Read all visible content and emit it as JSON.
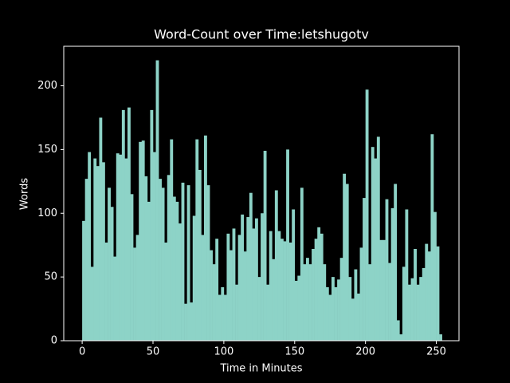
{
  "chart_data": {
    "type": "bar",
    "title": "Word-Count over Time:letshugotv",
    "xlabel": "Time in Minutes",
    "ylabel": "Words",
    "color": "#8dd3c7",
    "x": [
      0,
      2,
      4,
      6,
      8,
      10,
      12,
      14,
      16,
      18,
      20,
      22,
      24,
      26,
      28,
      30,
      32,
      34,
      36,
      38,
      40,
      42,
      44,
      46,
      48,
      50,
      52,
      54,
      56,
      58,
      60,
      62,
      64,
      66,
      68,
      70,
      72,
      74,
      76,
      78,
      80,
      82,
      84,
      86,
      88,
      90,
      92,
      94,
      96,
      98,
      100,
      102,
      104,
      106,
      108,
      110,
      112,
      114,
      116,
      118,
      120,
      122,
      124,
      126,
      128,
      130,
      132,
      134,
      136,
      138,
      140,
      142,
      144,
      146,
      148,
      150,
      152,
      154,
      156,
      158,
      160,
      162,
      164,
      166,
      168,
      170,
      172,
      174,
      176,
      178,
      180,
      182,
      184,
      186,
      188,
      190,
      192,
      194,
      196,
      198,
      200,
      202,
      204,
      206,
      208,
      210,
      212,
      214,
      216,
      218,
      220,
      222,
      224,
      226,
      228,
      230,
      232,
      234,
      236,
      238,
      240,
      242,
      244,
      246,
      248,
      250,
      252
    ],
    "values": [
      94,
      127,
      148,
      58,
      143,
      137,
      175,
      140,
      77,
      120,
      105,
      66,
      147,
      146,
      181,
      143,
      183,
      115,
      73,
      83,
      156,
      157,
      129,
      109,
      181,
      148,
      220,
      127,
      120,
      77,
      130,
      158,
      113,
      109,
      92,
      124,
      29,
      122,
      30,
      98,
      158,
      134,
      83,
      161,
      122,
      71,
      60,
      80,
      36,
      42,
      36,
      84,
      71,
      88,
      44,
      83,
      99,
      70,
      97,
      116,
      88,
      96,
      50,
      100,
      149,
      44,
      86,
      64,
      118,
      86,
      80,
      78,
      150,
      77,
      103,
      47,
      51,
      120,
      60,
      65,
      60,
      72,
      80,
      89,
      84,
      60,
      42,
      36,
      50,
      42,
      48,
      65,
      131,
      123,
      50,
      33,
      56,
      37,
      73,
      112,
      197,
      60,
      152,
      143,
      160,
      79,
      79,
      111,
      61,
      104,
      123,
      16,
      5,
      58,
      103,
      44,
      49,
      72,
      44,
      50,
      57,
      76,
      70,
      162,
      101,
      74,
      5
    ],
    "xlim": [
      -13,
      266
    ],
    "ylim": [
      0,
      231
    ],
    "xticks": [
      0,
      50,
      100,
      150,
      200,
      250
    ],
    "yticks": [
      0,
      50,
      100,
      150,
      200
    ]
  }
}
